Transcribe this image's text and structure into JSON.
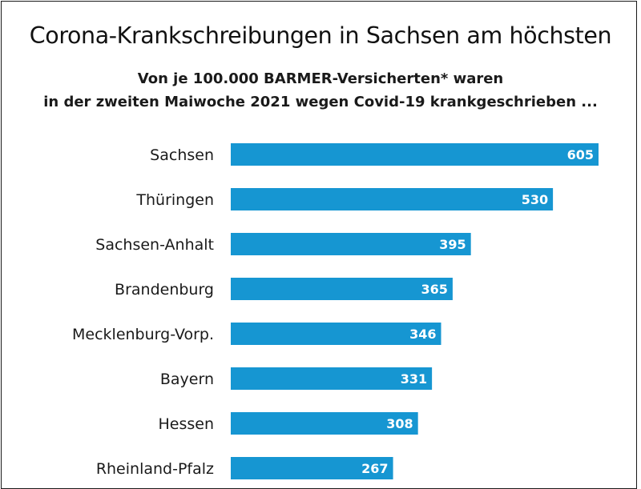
{
  "chart_data": {
    "type": "bar",
    "orientation": "horizontal",
    "title": "Corona-Krankschreibungen in Sachsen am höchsten",
    "subtitle": [
      "Von je 100.000 BARMER-Versicherten* waren",
      "in der zweiten Maiwoche 2021 wegen Covid-19 krankgeschrieben ..."
    ],
    "categories": [
      "Sachsen",
      "Thüringen",
      "Sachsen-Anhalt",
      "Brandenburg",
      "Mecklenburg-Vorp.",
      "Bayern",
      "Hessen",
      "Rheinland-Pfalz"
    ],
    "values": [
      605,
      530,
      395,
      365,
      346,
      331,
      308,
      267
    ],
    "value_labels": [
      "605",
      "530",
      "395",
      "365",
      "346",
      "331",
      "308",
      "267"
    ],
    "xlim": [
      0,
      605
    ],
    "grid": false,
    "bar_color": "#1696d2",
    "label_color": "#ffffff"
  }
}
